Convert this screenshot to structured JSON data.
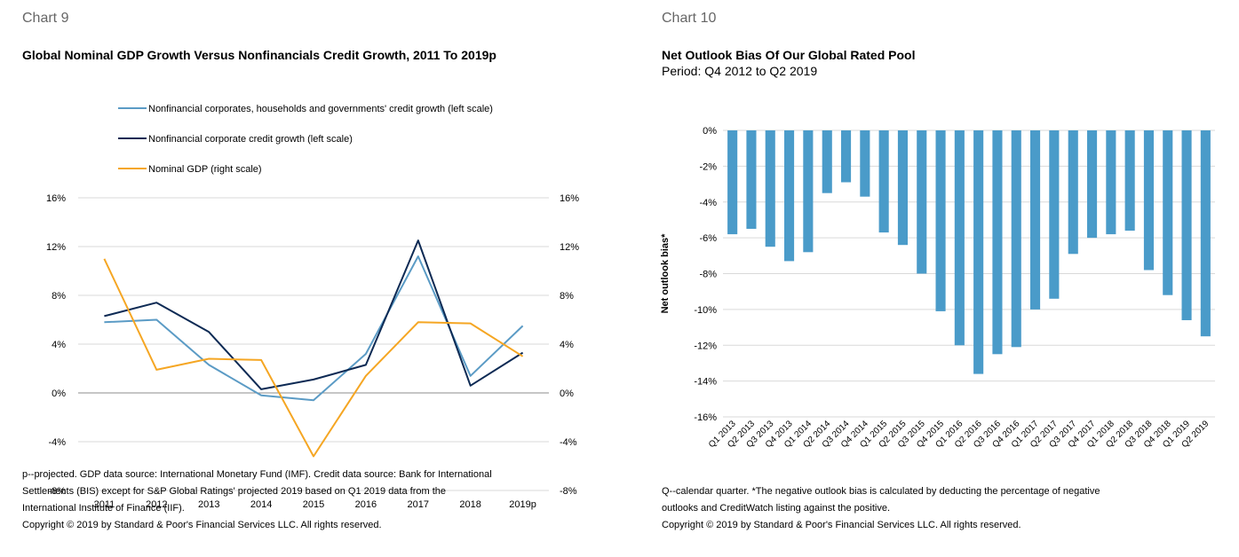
{
  "chart9": {
    "label": "Chart 9",
    "notes": [
      "p--projected. GDP data source: International Monetary Fund (IMF). Credit data source: Bank for International",
      "Settlements (BIS) except for S&P Global Ratings' projected 2019 based on Q1 2019 data from the",
      "International Institute of Finance (IIF)."
    ],
    "copyright": "Copyright © 2019 by Standard & Poor's Financial Services LLC. All rights reserved."
  },
  "chart10": {
    "label": "Chart 10",
    "subtitle": "Period: Q4 2012 to Q2 2019",
    "notes": [
      "Q--calendar quarter. *The negative outlook bias is calculated by deducting the percentage of negative",
      "outlooks and CreditWatch listing against the positive."
    ],
    "copyright": "Copyright © 2019 by Standard & Poor's Financial Services LLC. All rights reserved."
  },
  "chart_data": [
    {
      "type": "line",
      "title": "Global Nominal GDP Growth Versus Nonfinancials Credit Growth, 2011 To 2019p",
      "categories": [
        "2011",
        "2012",
        "2013",
        "2014",
        "2015",
        "2016",
        "2017",
        "2018",
        "2019p"
      ],
      "series": [
        {
          "name": "Nonfinancial corporates, households and governments' credit growth (left scale)",
          "color": "#5b9bc5",
          "axis": "left",
          "values": [
            5.8,
            6.0,
            2.3,
            -0.2,
            -0.6,
            3.2,
            11.2,
            1.4,
            5.5
          ]
        },
        {
          "name": "Nonfinancial corporate credit growth (left scale)",
          "color": "#0d2a54",
          "axis": "left",
          "values": [
            6.3,
            7.4,
            5.0,
            0.3,
            1.1,
            2.3,
            12.5,
            0.6,
            3.3
          ]
        },
        {
          "name": "Nominal GDP (right scale)",
          "color": "#f5a623",
          "axis": "right",
          "values": [
            11.0,
            1.9,
            2.8,
            2.7,
            -5.2,
            1.4,
            5.8,
            5.7,
            3.0
          ]
        }
      ],
      "yticks": [
        "16%",
        "12%",
        "8%",
        "4%",
        "0%",
        "-4%",
        "-8%"
      ],
      "ylim": [
        -8,
        16
      ],
      "y2lim": [
        -8,
        16
      ],
      "legend_position": "top",
      "grid": true
    },
    {
      "type": "bar",
      "title": "Net Outlook Bias Of Our Global Rated Pool",
      "ylabel": "Net outlook bias*",
      "categories": [
        "Q1 2013",
        "Q2 2013",
        "Q3 2013",
        "Q4 2013",
        "Q1 2014",
        "Q2 2014",
        "Q3 2014",
        "Q4 2014",
        "Q1 2015",
        "Q2 2015",
        "Q3 2015",
        "Q4 2015",
        "Q1 2016",
        "Q2 2016",
        "Q3 2016",
        "Q4 2016",
        "Q1 2017",
        "Q2 2017",
        "Q3 2017",
        "Q4 2017",
        "Q1 2018",
        "Q2 2018",
        "Q3 2018",
        "Q4 2018",
        "Q1 2019",
        "Q2 2019"
      ],
      "values": [
        -5.8,
        -5.5,
        -6.5,
        -7.3,
        -6.8,
        -3.5,
        -2.9,
        -3.7,
        -5.7,
        -6.4,
        -8.0,
        -10.1,
        -12.0,
        -13.6,
        -12.5,
        -12.1,
        -10.0,
        -9.4,
        -6.9,
        -6.0,
        -5.8,
        -5.6,
        -7.8,
        -9.2,
        -10.6,
        -11.5
      ],
      "yticks": [
        "0%",
        "-2%",
        "-4%",
        "-6%",
        "-8%",
        "-10%",
        "-12%",
        "-14%",
        "-16%"
      ],
      "ylim": [
        -16,
        0
      ],
      "color": "#4a9bc9",
      "grid": true
    }
  ]
}
